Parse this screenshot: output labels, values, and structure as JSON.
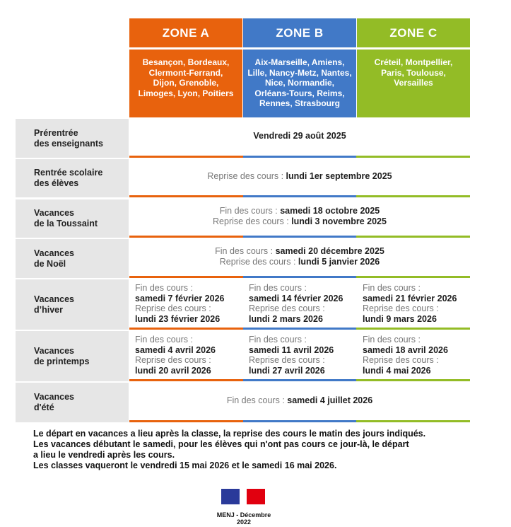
{
  "colors": {
    "zone_a": "#e8620d",
    "zone_b": "#4179c7",
    "zone_c": "#93bc26",
    "label_bg": "#e6e6e6"
  },
  "zones": [
    {
      "name": "ZONE A",
      "cities": [
        "Besançon, Bordeaux,",
        "Clermont-Ferrand,",
        "Dijon, Grenoble,",
        "Limoges, Lyon, Poitiers"
      ]
    },
    {
      "name": "ZONE B",
      "cities": [
        "Aix-Marseille, Amiens,",
        "Lille, Nancy-Metz, Nantes,",
        "Nice, Normandie,",
        "Orléans-Tours, Reims,",
        "Rennes, Strasbourg"
      ]
    },
    {
      "name": "ZONE C",
      "cities": [
        "Créteil, Montpellier,",
        "Paris, Toulouse,",
        "Versailles"
      ]
    }
  ],
  "rows": [
    {
      "label": [
        "Prérentrée",
        "des enseignants"
      ],
      "lines": [
        {
          "g": "",
          "b": "Vendredi 29 août 2025"
        }
      ]
    },
    {
      "label": [
        "Rentrée scolaire",
        "des élèves"
      ],
      "lines": [
        {
          "g": "Reprise des cours : ",
          "b": "lundi 1er septembre 2025"
        }
      ]
    },
    {
      "label": [
        "Vacances",
        "de la Toussaint"
      ],
      "lines": [
        {
          "g": "Fin des cours : ",
          "b": "samedi 18 octobre 2025"
        },
        {
          "g": "Reprise des cours : ",
          "b": "lundi 3 novembre 2025"
        }
      ]
    },
    {
      "label": [
        "Vacances",
        "de Noël"
      ],
      "lines": [
        {
          "g": "Fin des cours : ",
          "b": "samedi 20 décembre 2025"
        },
        {
          "g": "Reprise des cours : ",
          "b": "lundi 5 janvier 2026"
        }
      ]
    },
    {
      "label": [
        "Vacances",
        "d’hiver"
      ],
      "zones": [
        {
          "end_label": "Fin des cours :",
          "end": "samedi 7 février 2026",
          "resume_label": "Reprise des cours :",
          "resume": "lundi 23 février 2026"
        },
        {
          "end_label": "Fin des cours :",
          "end": "samedi 14 février 2026",
          "resume_label": "Reprise des cours :",
          "resume": "lundi 2 mars 2026"
        },
        {
          "end_label": "Fin des cours :",
          "end": "samedi 21 février 2026",
          "resume_label": "Reprise des cours :",
          "resume": "lundi 9 mars 2026"
        }
      ]
    },
    {
      "label": [
        "Vacances",
        "de printemps"
      ],
      "zones": [
        {
          "end_label": "Fin des cours :",
          "end": "samedi 4 avril 2026",
          "resume_label": "Reprise des cours :",
          "resume": "lundi 20 avril 2026"
        },
        {
          "end_label": "Fin des cours :",
          "end": "samedi 11 avril 2026",
          "resume_label": "Reprise des cours :",
          "resume": "lundi 27 avril 2026"
        },
        {
          "end_label": "Fin des cours :",
          "end": "samedi 18 avril 2026",
          "resume_label": "Reprise des cours :",
          "resume": "lundi 4 mai 2026"
        }
      ]
    },
    {
      "label": [
        "Vacances",
        "d'été"
      ],
      "lines": [
        {
          "g": "Fin des cours : ",
          "b": "samedi 4 juillet 2026"
        }
      ]
    }
  ],
  "notes": [
    "Le départ en vacances a lieu après la classe, la reprise des cours le matin des jours indiqués.",
    "Les vacances débutant le samedi, pour les élèves qui n'ont pas cours ce jour-là, le départ",
    "a lieu le vendredi après les cours.",
    "Les classes vaqueront le vendredi 15 mai 2026 et le samedi 16 mai 2026."
  ],
  "footer": {
    "logo": "Marianne",
    "credit": "MENJ - Décembre 2022"
  }
}
